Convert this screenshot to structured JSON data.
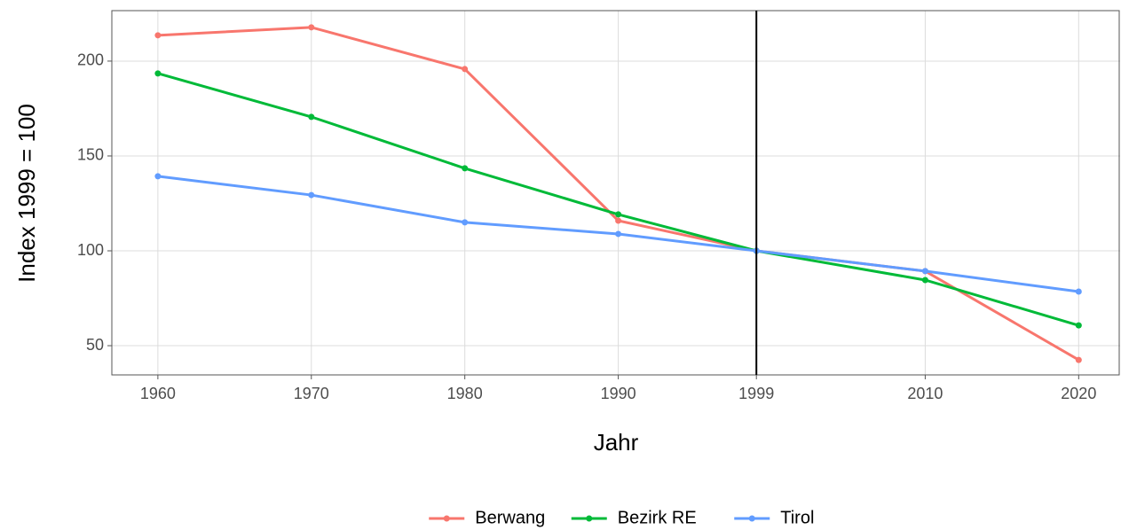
{
  "chart_data": {
    "type": "line",
    "x_label": "Jahr",
    "y_label": "Index 1999 = 100",
    "x": [
      1960,
      1970,
      1980,
      1990,
      1999,
      2010,
      2020
    ],
    "series": [
      {
        "name": "Berwang",
        "color": "#F8766D",
        "values": [
          213.6,
          217.8,
          195.8,
          115.9,
          100,
          89.3,
          42.5
        ]
      },
      {
        "name": "Bezirk RE",
        "color": "#00BA38",
        "values": [
          193.5,
          170.6,
          143.5,
          119.2,
          100,
          84.6,
          60.7
        ]
      },
      {
        "name": "Tirol",
        "color": "#619CFF",
        "values": [
          139.3,
          129.4,
          115,
          108.9,
          100,
          89.3,
          78.5
        ]
      }
    ],
    "xlim": [
      1957,
      2022.7
    ],
    "xticks": [
      1960,
      1970,
      1980,
      1990,
      1999,
      2010,
      2020
    ],
    "ylim": [
      34.6,
      226.6
    ],
    "yticks": [
      50,
      100,
      150,
      200
    ],
    "vline": 1999,
    "grid": true,
    "legend": "bottom"
  }
}
